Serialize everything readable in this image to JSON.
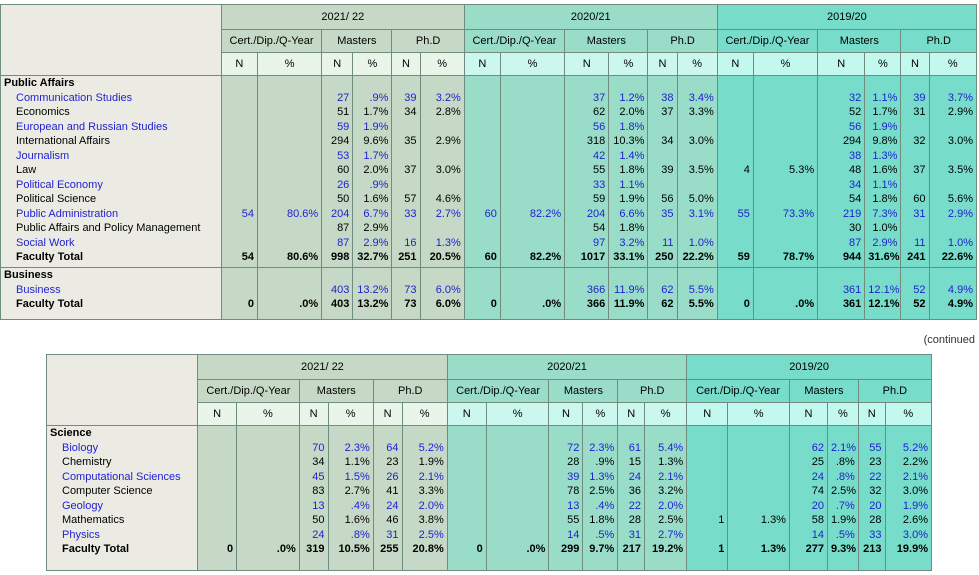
{
  "years": [
    "2021/ 22",
    "2020/21",
    "2019/20"
  ],
  "programs": [
    "Cert./Dip./Q-Year",
    "Masters",
    "Ph.D"
  ],
  "sub": [
    "N",
    "%"
  ],
  "continued": "(continued",
  "tables": [
    {
      "id": "t1",
      "sections": [
        {
          "title": "Public Affairs",
          "rows": [
            {
              "name": "Communication Studies",
              "link": true,
              "total": false,
              "v": [
                "",
                "",
                "27",
                ".9%",
                "39",
                "3.2%",
                "",
                "",
                "37",
                "1.2%",
                "38",
                "3.4%",
                "",
                "",
                "32",
                "1.1%",
                "39",
                "3.7%"
              ]
            },
            {
              "name": "Economics",
              "link": false,
              "total": false,
              "v": [
                "",
                "",
                "51",
                "1.7%",
                "34",
                "2.8%",
                "",
                "",
                "62",
                "2.0%",
                "37",
                "3.3%",
                "",
                "",
                "52",
                "1.7%",
                "31",
                "2.9%"
              ]
            },
            {
              "name": "European and Russian Studies",
              "link": true,
              "total": false,
              "v": [
                "",
                "",
                "59",
                "1.9%",
                "",
                "",
                "",
                "",
                "56",
                "1.8%",
                "",
                "",
                "",
                "",
                "56",
                "1.9%",
                "",
                ""
              ]
            },
            {
              "name": "International Affairs",
              "link": false,
              "total": false,
              "v": [
                "",
                "",
                "294",
                "9.6%",
                "35",
                "2.9%",
                "",
                "",
                "318",
                "10.3%",
                "34",
                "3.0%",
                "",
                "",
                "294",
                "9.8%",
                "32",
                "3.0%"
              ]
            },
            {
              "name": "Journalism",
              "link": true,
              "total": false,
              "v": [
                "",
                "",
                "53",
                "1.7%",
                "",
                "",
                "",
                "",
                "42",
                "1.4%",
                "",
                "",
                "",
                "",
                "38",
                "1.3%",
                "",
                ""
              ]
            },
            {
              "name": "Law",
              "link": false,
              "total": false,
              "v": [
                "",
                "",
                "60",
                "2.0%",
                "37",
                "3.0%",
                "",
                "",
                "55",
                "1.8%",
                "39",
                "3.5%",
                "4",
                "5.3%",
                "48",
                "1.6%",
                "37",
                "3.5%"
              ]
            },
            {
              "name": "Political Economy",
              "link": true,
              "total": false,
              "v": [
                "",
                "",
                "26",
                ".9%",
                "",
                "",
                "",
                "",
                "33",
                "1.1%",
                "",
                "",
                "",
                "",
                "34",
                "1.1%",
                "",
                ""
              ]
            },
            {
              "name": "Political Science",
              "link": false,
              "total": false,
              "v": [
                "",
                "",
                "50",
                "1.6%",
                "57",
                "4.6%",
                "",
                "",
                "59",
                "1.9%",
                "56",
                "5.0%",
                "",
                "",
                "54",
                "1.8%",
                "60",
                "5.6%"
              ]
            },
            {
              "name": "Public Administration",
              "link": true,
              "total": false,
              "v": [
                "54",
                "80.6%",
                "204",
                "6.7%",
                "33",
                "2.7%",
                "60",
                "82.2%",
                "204",
                "6.6%",
                "35",
                "3.1%",
                "55",
                "73.3%",
                "219",
                "7.3%",
                "31",
                "2.9%"
              ]
            },
            {
              "name": "Public Affairs and Policy Management",
              "link": false,
              "total": false,
              "v": [
                "",
                "",
                "87",
                "2.9%",
                "",
                "",
                "",
                "",
                "54",
                "1.8%",
                "",
                "",
                "",
                "",
                "30",
                "1.0%",
                "",
                ""
              ]
            },
            {
              "name": "Social Work",
              "link": true,
              "total": false,
              "v": [
                "",
                "",
                "87",
                "2.9%",
                "16",
                "1.3%",
                "",
                "",
                "97",
                "3.2%",
                "11",
                "1.0%",
                "",
                "",
                "87",
                "2.9%",
                "11",
                "1.0%"
              ]
            },
            {
              "name": "Faculty Total",
              "link": false,
              "total": true,
              "v": [
                "54",
                "80.6%",
                "998",
                "32.7%",
                "251",
                "20.5%",
                "60",
                "82.2%",
                "1017",
                "33.1%",
                "250",
                "22.2%",
                "59",
                "78.7%",
                "944",
                "31.6%",
                "241",
                "22.6%"
              ]
            }
          ]
        },
        {
          "title": "Business",
          "rows": [
            {
              "name": "Business",
              "link": true,
              "total": false,
              "v": [
                "",
                "",
                "403",
                "13.2%",
                "73",
                "6.0%",
                "",
                "",
                "366",
                "11.9%",
                "62",
                "5.5%",
                "",
                "",
                "361",
                "12.1%",
                "52",
                "4.9%"
              ]
            },
            {
              "name": "Faculty Total",
              "link": false,
              "total": true,
              "v": [
                "0",
                ".0%",
                "403",
                "13.2%",
                "73",
                "6.0%",
                "0",
                ".0%",
                "366",
                "11.9%",
                "62",
                "5.5%",
                "0",
                ".0%",
                "361",
                "12.1%",
                "52",
                "4.9%"
              ]
            }
          ]
        }
      ]
    },
    {
      "id": "t2",
      "sections": [
        {
          "title": "Science",
          "rows": [
            {
              "name": "Biology",
              "link": true,
              "total": false,
              "v": [
                "",
                "",
                "70",
                "2.3%",
                "64",
                "5.2%",
                "",
                "",
                "72",
                "2.3%",
                "61",
                "5.4%",
                "",
                "",
                "62",
                "2.1%",
                "55",
                "5.2%"
              ]
            },
            {
              "name": "Chemistry",
              "link": false,
              "total": false,
              "v": [
                "",
                "",
                "34",
                "1.1%",
                "23",
                "1.9%",
                "",
                "",
                "28",
                ".9%",
                "15",
                "1.3%",
                "",
                "",
                "25",
                ".8%",
                "23",
                "2.2%"
              ]
            },
            {
              "name": "Computational Sciences",
              "link": true,
              "total": false,
              "v": [
                "",
                "",
                "45",
                "1.5%",
                "26",
                "2.1%",
                "",
                "",
                "39",
                "1.3%",
                "24",
                "2.1%",
                "",
                "",
                "24",
                ".8%",
                "22",
                "2.1%"
              ]
            },
            {
              "name": "Computer Science",
              "link": false,
              "total": false,
              "v": [
                "",
                "",
                "83",
                "2.7%",
                "41",
                "3.3%",
                "",
                "",
                "78",
                "2.5%",
                "36",
                "3.2%",
                "",
                "",
                "74",
                "2.5%",
                "32",
                "3.0%"
              ]
            },
            {
              "name": "Geology",
              "link": true,
              "total": false,
              "v": [
                "",
                "",
                "13",
                ".4%",
                "24",
                "2.0%",
                "",
                "",
                "13",
                ".4%",
                "22",
                "2.0%",
                "",
                "",
                "20",
                ".7%",
                "20",
                "1.9%"
              ]
            },
            {
              "name": "Mathematics",
              "link": false,
              "total": false,
              "v": [
                "",
                "",
                "50",
                "1.6%",
                "46",
                "3.8%",
                "",
                "",
                "55",
                "1.8%",
                "28",
                "2.5%",
                "1",
                "1.3%",
                "58",
                "1.9%",
                "28",
                "2.6%"
              ]
            },
            {
              "name": "Physics",
              "link": true,
              "total": false,
              "v": [
                "",
                "",
                "24",
                ".8%",
                "31",
                "2.5%",
                "",
                "",
                "14",
                ".5%",
                "31",
                "2.7%",
                "",
                "",
                "14",
                ".5%",
                "33",
                "3.0%"
              ]
            },
            {
              "name": "Faculty Total",
              "link": false,
              "total": true,
              "v": [
                "0",
                ".0%",
                "319",
                "10.5%",
                "255",
                "20.8%",
                "0",
                ".0%",
                "299",
                "9.7%",
                "217",
                "19.2%",
                "1",
                "1.3%",
                "277",
                "9.3%",
                "213",
                "19.9%"
              ]
            }
          ]
        }
      ]
    }
  ]
}
